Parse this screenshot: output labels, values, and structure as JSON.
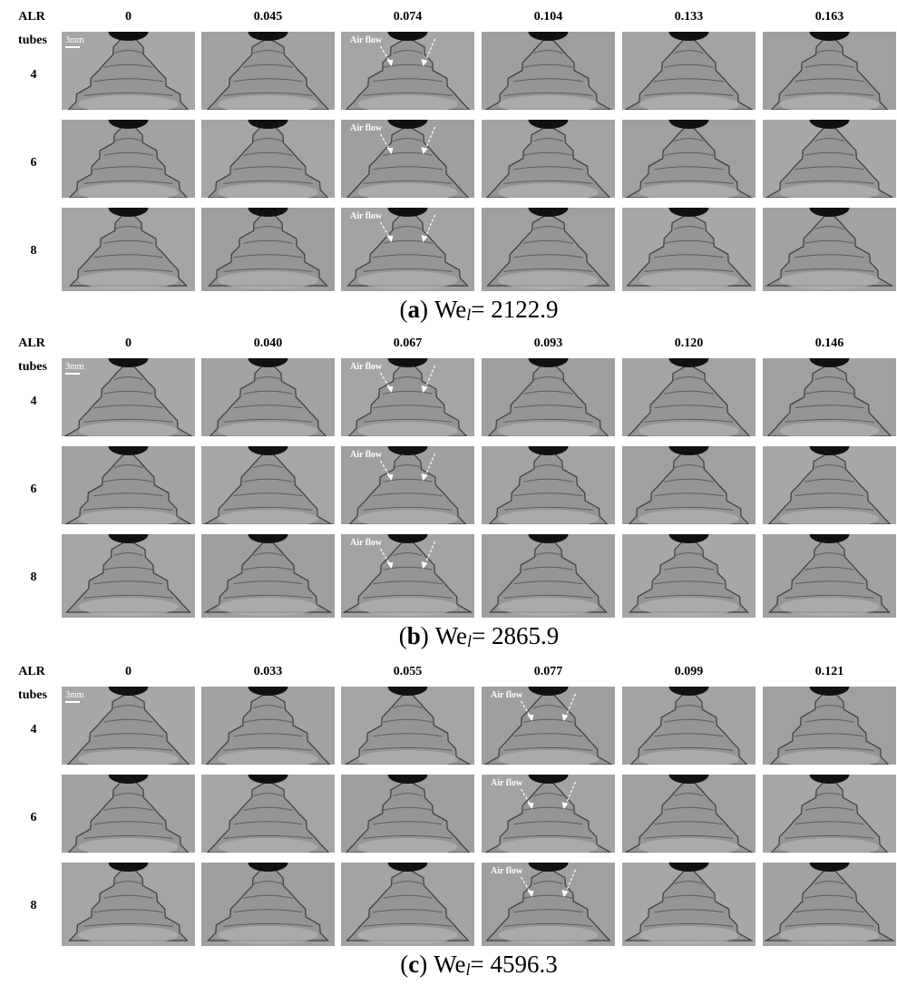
{
  "panels": [
    {
      "alr_label": "ALR",
      "tubes_label": "tubes",
      "alr_values": [
        "0",
        "0.045",
        "0.074",
        "0.104",
        "0.133",
        "0.163"
      ],
      "rows": [
        {
          "tubes": "4",
          "cells": [
            {
              "scale": "3mm"
            },
            null,
            {
              "annotation": "Air flow"
            },
            null,
            null,
            null
          ]
        },
        {
          "tubes": "6",
          "cells": [
            null,
            null,
            {
              "annotation": "Air flow"
            },
            null,
            null,
            null
          ]
        },
        {
          "tubes": "8",
          "cells": [
            null,
            null,
            {
              "annotation": "Air flow"
            },
            null,
            null,
            null
          ]
        }
      ],
      "caption": {
        "open": "(",
        "letter": "a",
        "close": ")",
        "symbol": "We",
        "subscript": "l",
        "value": "= 2122.9"
      }
    },
    {
      "alr_label": "ALR",
      "tubes_label": "tubes",
      "alr_values": [
        "0",
        "0.040",
        "0.067",
        "0.093",
        "0.120",
        "0.146"
      ],
      "rows": [
        {
          "tubes": "4",
          "cells": [
            {
              "scale": "3mm"
            },
            null,
            {
              "annotation": "Air flow"
            },
            null,
            null,
            null
          ]
        },
        {
          "tubes": "6",
          "cells": [
            null,
            null,
            {
              "annotation": "Air flow"
            },
            null,
            null,
            null
          ]
        },
        {
          "tubes": "8",
          "cells": [
            null,
            null,
            {
              "annotation": "Air flow"
            },
            null,
            null,
            null
          ]
        }
      ],
      "caption": {
        "open": "(",
        "letter": "b",
        "close": ")",
        "symbol": "We",
        "subscript": "l",
        "value": "= 2865.9"
      }
    },
    {
      "alr_label": "ALR",
      "tubes_label": "tubes",
      "alr_values": [
        "0",
        "0.033",
        "0.055",
        "0.077",
        "0.099",
        "0.121"
      ],
      "rows": [
        {
          "tubes": "4",
          "cells": [
            {
              "scale": "3mm"
            },
            null,
            null,
            {
              "annotation": "Air flow"
            },
            null,
            null
          ]
        },
        {
          "tubes": "6",
          "cells": [
            null,
            null,
            null,
            {
              "annotation": "Air flow"
            },
            null,
            null
          ]
        },
        {
          "tubes": "8",
          "cells": [
            null,
            null,
            null,
            {
              "annotation": "Air flow"
            },
            null,
            null
          ]
        }
      ],
      "caption": {
        "open": "(",
        "letter": "c",
        "close": ")",
        "symbol": "We",
        "subscript": "l",
        "value": "= 4596.3"
      }
    }
  ]
}
